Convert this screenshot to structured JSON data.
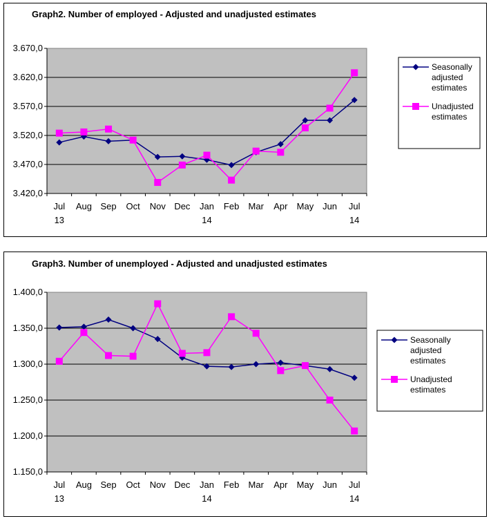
{
  "colors": {
    "adjusted": "#000080",
    "unadjusted": "#FF00FF",
    "plot_bg": "#C0C0C0"
  },
  "chart_data": [
    {
      "type": "line",
      "title": "Graph2. Number of employed - Adjusted and unadjusted estimates",
      "categories": [
        [
          "Jul",
          "13"
        ],
        [
          "Aug"
        ],
        [
          "Sep"
        ],
        [
          "Oct"
        ],
        [
          "Nov"
        ],
        [
          "Dec"
        ],
        [
          "Jan",
          "14"
        ],
        [
          "Feb"
        ],
        [
          "Mar"
        ],
        [
          "Apr"
        ],
        [
          "May"
        ],
        [
          "Jun"
        ],
        [
          "Jul",
          "14"
        ]
      ],
      "series": [
        {
          "name": [
            "Seasonally",
            "adjusted",
            "estimates"
          ],
          "marker": "diamond",
          "color": "#000080",
          "values": [
            3508,
            3518,
            3510,
            3512,
            3483,
            3484,
            3478,
            3469,
            3491,
            3505,
            3546,
            3546,
            3581
          ]
        },
        {
          "name": [
            "Unadjusted",
            "estimates"
          ],
          "marker": "square",
          "color": "#FF00FF",
          "values": [
            3524,
            3526,
            3531,
            3512,
            3439,
            3469,
            3486,
            3443,
            3493,
            3491,
            3533,
            3567,
            3628
          ]
        }
      ],
      "ylim": [
        3420,
        3670
      ],
      "yticks": [
        3420,
        3470,
        3520,
        3570,
        3620,
        3670
      ],
      "ytick_labels": [
        "3.420,0",
        "3.470,0",
        "3.520,0",
        "3.570,0",
        "3.620,0",
        "3.670,0"
      ],
      "grid": true,
      "legend_position": "right"
    },
    {
      "type": "line",
      "title": "Graph3. Number of unemployed - Adjusted and unadjusted estimates",
      "categories": [
        [
          "Jul",
          "13"
        ],
        [
          "Aug"
        ],
        [
          "Sep"
        ],
        [
          "Oct"
        ],
        [
          "Nov"
        ],
        [
          "Dec"
        ],
        [
          "Jan",
          "14"
        ],
        [
          "Feb"
        ],
        [
          "Mar"
        ],
        [
          "Apr"
        ],
        [
          "May"
        ],
        [
          "Jun"
        ],
        [
          "Jul",
          "14"
        ]
      ],
      "series": [
        {
          "name": [
            "Seasonally",
            "adjusted",
            "estimates"
          ],
          "marker": "diamond",
          "color": "#000080",
          "values": [
            1351,
            1352,
            1362,
            1350,
            1335,
            1309,
            1297,
            1296,
            1300,
            1302,
            1298,
            1293,
            1281
          ]
        },
        {
          "name": [
            "Unadjusted",
            "estimates"
          ],
          "marker": "square",
          "color": "#FF00FF",
          "values": [
            1304,
            1344,
            1312,
            1311,
            1384,
            1315,
            1316,
            1366,
            1343,
            1291,
            1298,
            1250,
            1207
          ]
        }
      ],
      "ylim": [
        1150,
        1400
      ],
      "yticks": [
        1150,
        1200,
        1250,
        1300,
        1350,
        1400
      ],
      "ytick_labels": [
        "1.150,0",
        "1.200,0",
        "1.250,0",
        "1.300,0",
        "1.350,0",
        "1.400,0"
      ],
      "grid": true,
      "legend_position": "right"
    }
  ]
}
